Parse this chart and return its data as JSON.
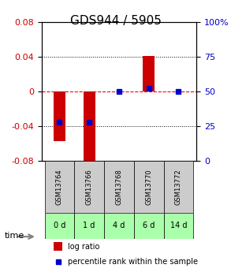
{
  "title": "GDS944 / 5905",
  "samples": [
    "GSM13764",
    "GSM13766",
    "GSM13768",
    "GSM13770",
    "GSM13772"
  ],
  "time_labels": [
    "0 d",
    "1 d",
    "4 d",
    "6 d",
    "14 d"
  ],
  "log_ratios": [
    -0.057,
    -0.082,
    0.0,
    0.041,
    0.0
  ],
  "percentile_ranks": [
    28,
    28,
    50,
    52,
    50
  ],
  "ylim_left": [
    -0.08,
    0.08
  ],
  "ylim_right": [
    0,
    100
  ],
  "yticks_left": [
    -0.08,
    -0.04,
    0,
    0.04,
    0.08
  ],
  "yticks_right": [
    0,
    25,
    50,
    75,
    100
  ],
  "bar_color": "#cc0000",
  "dot_color": "#0000cc",
  "bar_width": 0.4,
  "sample_box_color": "#cccccc",
  "time_box_color": "#aaffaa",
  "title_fontsize": 11,
  "tick_fontsize": 8,
  "label_fontsize": 8
}
